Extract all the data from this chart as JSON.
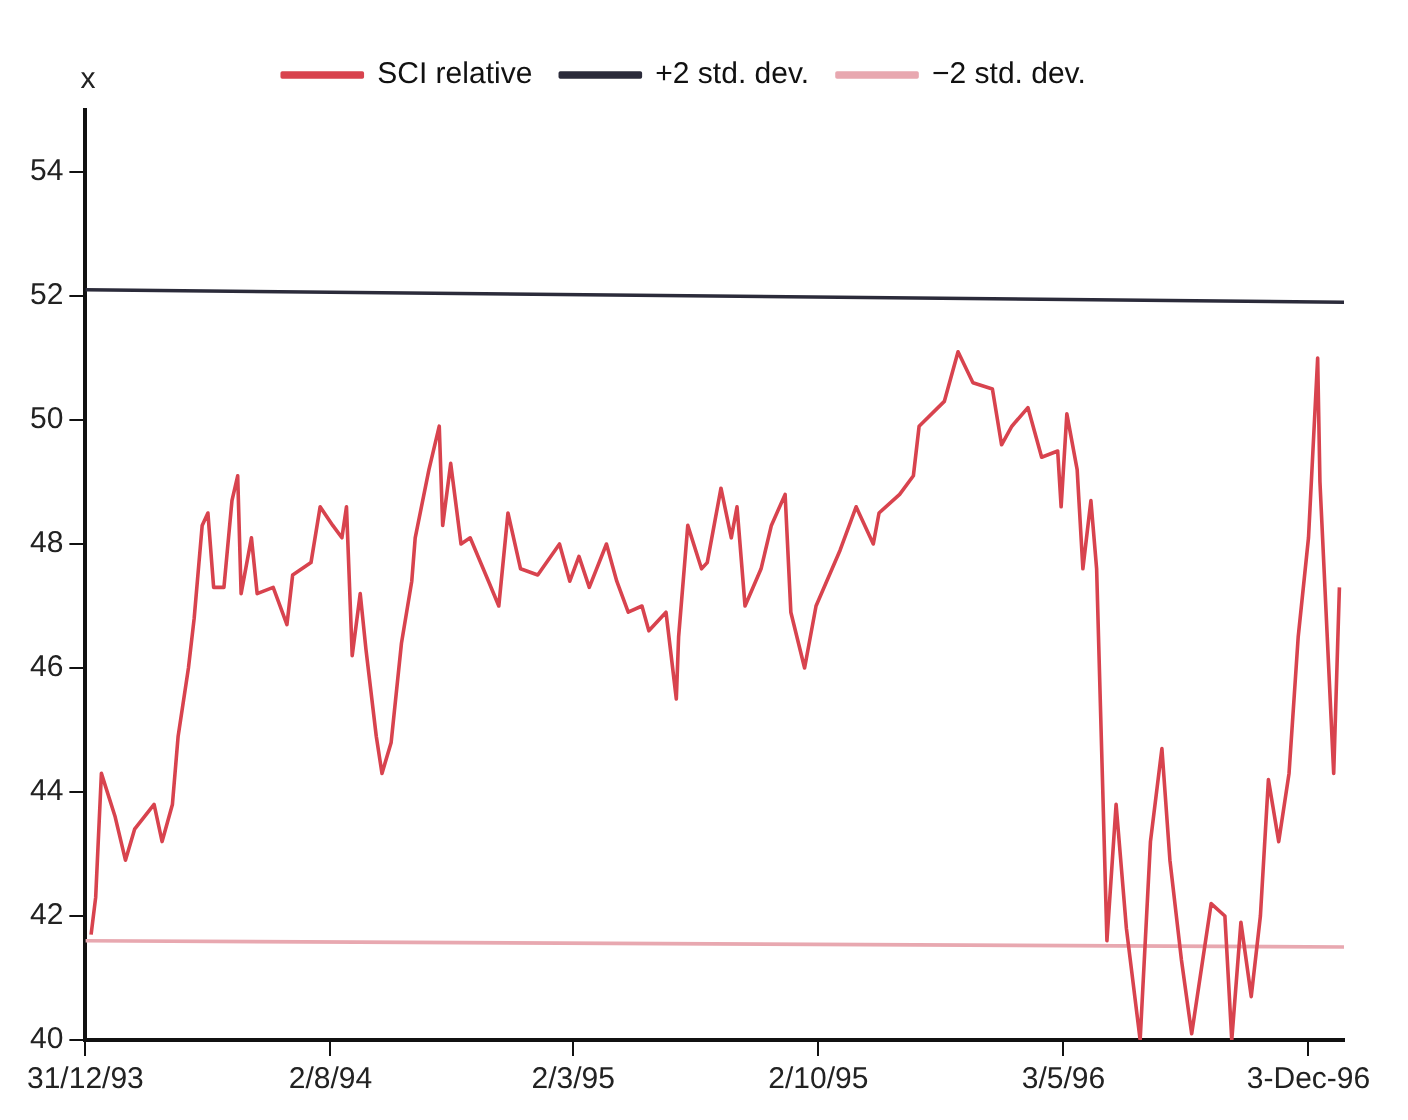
{
  "chart_data": {
    "type": "line",
    "ylabel": "x",
    "xlim": [
      "1993-12-31",
      "1997-01-03"
    ],
    "xticks": [
      {
        "value": "1993-12-31",
        "label": "31/12/93"
      },
      {
        "value": "1994-08-02",
        "label": "2/8/94"
      },
      {
        "value": "1995-03-02",
        "label": "2/3/95"
      },
      {
        "value": "1995-10-02",
        "label": "2/10/95"
      },
      {
        "value": "1996-05-03",
        "label": "3/5/96"
      },
      {
        "value": "1996-12-03",
        "label": "3-Dec-96"
      }
    ],
    "ylim": [
      40,
      55
    ],
    "yticks": [
      40,
      42,
      44,
      46,
      48,
      50,
      52,
      54
    ],
    "grid": false,
    "legend": "top",
    "marker": "none",
    "line_style": "solid",
    "series": [
      {
        "name": "SCI relative",
        "color": "#d8434e",
        "x": [
          "1994-01-05",
          "1994-01-09",
          "1994-01-14",
          "1994-01-26",
          "1994-02-04",
          "1994-02-12",
          "1994-03-01",
          "1994-03-08",
          "1994-03-17",
          "1994-03-22",
          "1994-03-31",
          "1994-04-05",
          "1994-04-12",
          "1994-04-17",
          "1994-04-22",
          "1994-05-01",
          "1994-05-08",
          "1994-05-13",
          "1994-05-16",
          "1994-05-25",
          "1994-05-30",
          "1994-06-13",
          "1994-06-25",
          "1994-06-30",
          "1994-07-16",
          "1994-07-24",
          "1994-08-04",
          "1994-08-12",
          "1994-08-16",
          "1994-08-21",
          "1994-08-28",
          "1994-09-02",
          "1994-09-11",
          "1994-09-16",
          "1994-09-24",
          "1994-10-03",
          "1994-10-12",
          "1994-10-15",
          "1994-10-27",
          "1994-11-05",
          "1994-11-08",
          "1994-11-15",
          "1994-11-24",
          "1994-12-02",
          "1994-12-18",
          "1994-12-27",
          "1995-01-04",
          "1995-01-15",
          "1995-01-30",
          "1995-02-18",
          "1995-02-27",
          "1995-03-07",
          "1995-03-16",
          "1995-03-31",
          "1995-04-09",
          "1995-04-19",
          "1995-05-01",
          "1995-05-07",
          "1995-05-22",
          "1995-05-31",
          "1995-06-02",
          "1995-06-10",
          "1995-06-22",
          "1995-06-27",
          "1995-07-04",
          "1995-07-09",
          "1995-07-18",
          "1995-07-23",
          "1995-07-30",
          "1995-08-13",
          "1995-08-22",
          "1995-09-03",
          "1995-09-08",
          "1995-09-20",
          "1995-09-30",
          "1995-10-21",
          "1995-11-04",
          "1995-11-19",
          "1995-11-24",
          "1995-12-12",
          "1995-12-24",
          "1995-12-29",
          "1996-01-20",
          "1996-02-01",
          "1996-02-14",
          "1996-03-02",
          "1996-03-10",
          "1996-03-19",
          "1996-04-02",
          "1996-04-14",
          "1996-04-28",
          "1996-05-01",
          "1996-05-06",
          "1996-05-15",
          "1996-05-20",
          "1996-05-27",
          "1996-06-01",
          "1996-06-10",
          "1996-06-18",
          "1996-06-27",
          "1996-07-09",
          "1996-07-18",
          "1996-07-28",
          "1996-08-04",
          "1996-08-14",
          "1996-08-23",
          "1996-09-09",
          "1996-09-21",
          "1996-09-27",
          "1996-10-05",
          "1996-10-14",
          "1996-10-22",
          "1996-10-29",
          "1996-11-07",
          "1996-11-16",
          "1996-11-24",
          "1996-12-03",
          "1996-12-11",
          "1996-12-13",
          "1996-12-25",
          "1996-12-30"
        ],
        "values": [
          41.7,
          42.3,
          44.3,
          43.6,
          42.9,
          43.4,
          43.8,
          43.2,
          43.8,
          44.9,
          46.0,
          46.8,
          48.3,
          48.5,
          47.3,
          47.3,
          48.7,
          49.1,
          47.2,
          48.1,
          47.2,
          47.3,
          46.7,
          47.5,
          47.7,
          48.6,
          48.3,
          48.1,
          48.6,
          46.2,
          47.2,
          46.3,
          44.9,
          44.3,
          44.8,
          46.4,
          47.4,
          48.1,
          49.2,
          49.9,
          48.3,
          49.3,
          48.0,
          48.1,
          47.4,
          47.0,
          48.5,
          47.6,
          47.5,
          48.0,
          47.4,
          47.8,
          47.3,
          48.0,
          47.4,
          46.9,
          47.0,
          46.6,
          46.9,
          45.5,
          46.5,
          48.3,
          47.6,
          47.7,
          48.4,
          48.9,
          48.1,
          48.6,
          47.0,
          47.6,
          48.3,
          48.8,
          46.9,
          46.0,
          47.0,
          47.9,
          48.6,
          48.0,
          48.5,
          48.8,
          49.1,
          49.9,
          50.3,
          51.1,
          50.6,
          50.5,
          49.6,
          49.9,
          50.2,
          49.4,
          49.5,
          48.6,
          50.1,
          49.2,
          47.6,
          48.7,
          47.6,
          41.6,
          43.8,
          41.8,
          40.0,
          43.2,
          44.7,
          42.9,
          41.3,
          40.1,
          42.2,
          42.0,
          40.0,
          41.9,
          40.7,
          42.0,
          44.2,
          43.2,
          44.3,
          46.5,
          48.1,
          51.0,
          49.0,
          44.3,
          47.3
        ]
      },
      {
        "name": "+2 std. dev.",
        "color": "#2b2b3a",
        "x": [
          "1993-12-31",
          "1997-01-03"
        ],
        "values": [
          52.1,
          51.9
        ]
      },
      {
        "name": "−2 std. dev.",
        "color": "#e8a8b0",
        "x": [
          "1993-12-31",
          "1997-01-03"
        ],
        "values": [
          41.6,
          41.5
        ]
      }
    ]
  }
}
